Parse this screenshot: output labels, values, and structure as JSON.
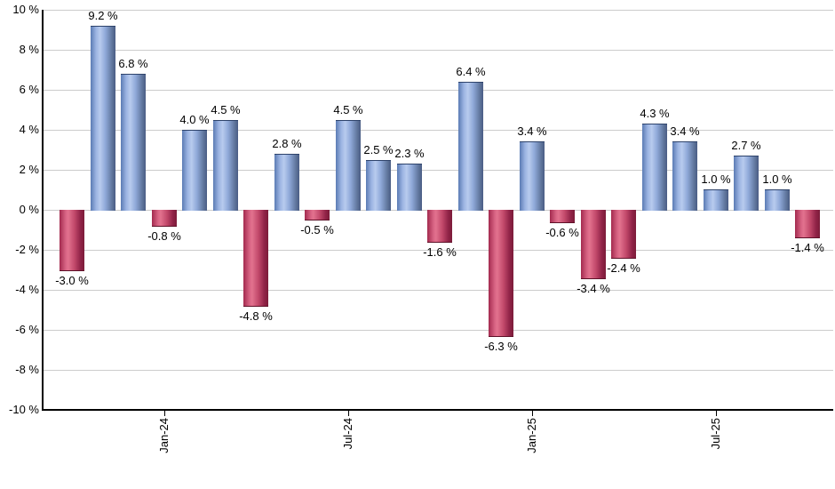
{
  "chart_data": {
    "type": "bar",
    "title": "",
    "y_axis": {
      "tick_labels": [
        "10 %",
        "8 %",
        "6 %",
        "4 %",
        "2 %",
        "0 %",
        "-2 %",
        "-4 %",
        "-6 %",
        "-8 %",
        "-10 %"
      ],
      "ylim": [
        -10,
        10
      ],
      "grid_step": 2,
      "grid": true,
      "unit": "%"
    },
    "x_axis": {
      "ticks": [
        {
          "label": "Jan-24",
          "bar_index": 3
        },
        {
          "label": "Jul-24",
          "bar_index": 9
        },
        {
          "label": "Jan-25",
          "bar_index": 15
        },
        {
          "label": "Jul-25",
          "bar_index": 21
        }
      ]
    },
    "bars": [
      {
        "value": -3.0,
        "label": "-3.0 %"
      },
      {
        "value": 9.2,
        "label": "9.2 %"
      },
      {
        "value": 6.8,
        "label": "6.8 %"
      },
      {
        "value": -0.8,
        "label": "-0.8 %"
      },
      {
        "value": 4.0,
        "label": "4.0 %"
      },
      {
        "value": 4.5,
        "label": "4.5 %"
      },
      {
        "value": -4.8,
        "label": "-4.8 %"
      },
      {
        "value": 2.8,
        "label": "2.8 %"
      },
      {
        "value": -0.5,
        "label": "-0.5 %"
      },
      {
        "value": 4.5,
        "label": "4.5 %"
      },
      {
        "value": 2.5,
        "label": "2.5 %"
      },
      {
        "value": 2.3,
        "label": "2.3 %"
      },
      {
        "value": -1.6,
        "label": "-1.6 %"
      },
      {
        "value": 6.4,
        "label": "6.4 %"
      },
      {
        "value": -6.3,
        "label": "-6.3 %"
      },
      {
        "value": 3.4,
        "label": "3.4 %"
      },
      {
        "value": -0.6,
        "label": "-0.6 %"
      },
      {
        "value": -3.4,
        "label": "-3.4 %"
      },
      {
        "value": -2.4,
        "label": "-2.4 %"
      },
      {
        "value": 4.3,
        "label": "4.3 %"
      },
      {
        "value": 3.4,
        "label": "3.4 %"
      },
      {
        "value": 1.0,
        "label": "1.0 %"
      },
      {
        "value": 2.7,
        "label": "2.7 %"
      },
      {
        "value": 1.0,
        "label": "1.0 %"
      },
      {
        "value": -1.4,
        "label": "-1.4 %"
      }
    ],
    "colors": {
      "positive_bar": "#8ea8d8",
      "negative_bar": "#c2496b",
      "grid_line": "#cccccc",
      "axis_line": "#000000",
      "text": "#000000",
      "background": "#ffffff"
    }
  }
}
